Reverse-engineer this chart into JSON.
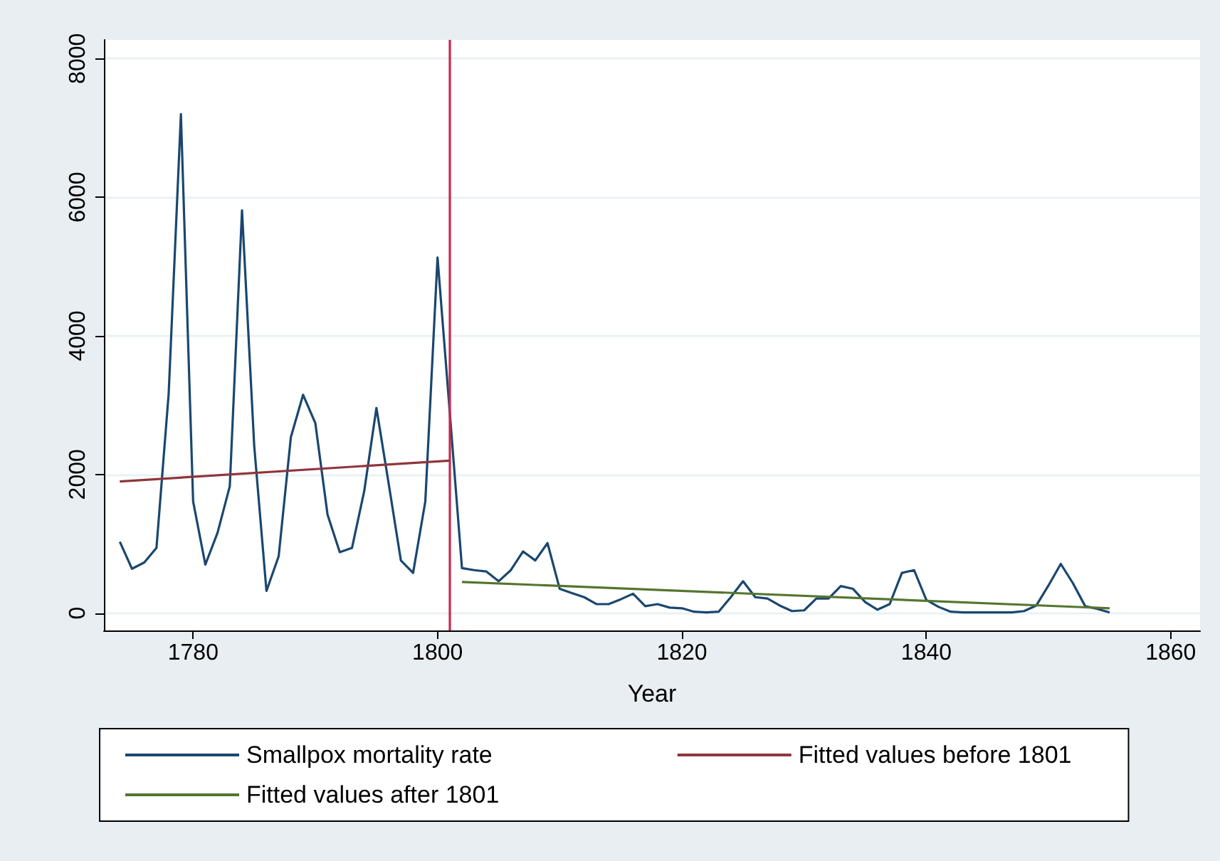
{
  "chart_data": {
    "type": "line",
    "xlabel": "Year",
    "xlim": [
      1772.7,
      1862.4
    ],
    "xticks": [
      1780,
      1800,
      1820,
      1840,
      1860
    ],
    "ylim": [
      -250,
      8270
    ],
    "yticks": [
      0,
      2000,
      4000,
      6000,
      8000
    ],
    "grid": "y",
    "legend": "bottom",
    "marker": "none",
    "line_style": "solid",
    "ref_lines": [
      {
        "axis": "x",
        "value": 1801,
        "color": "#c8284f"
      }
    ],
    "series": [
      {
        "name": "Smallpox mortality rate",
        "color": "#1a476f",
        "x": [
          1774,
          1775,
          1776,
          1777,
          1778,
          1779,
          1780,
          1781,
          1782,
          1783,
          1784,
          1785,
          1786,
          1787,
          1788,
          1789,
          1790,
          1791,
          1792,
          1793,
          1794,
          1795,
          1796,
          1797,
          1798,
          1799,
          1800,
          1801,
          1802,
          1803,
          1804,
          1805,
          1806,
          1807,
          1808,
          1809,
          1810,
          1811,
          1812,
          1813,
          1814,
          1815,
          1816,
          1817,
          1818,
          1819,
          1820,
          1821,
          1822,
          1823,
          1824,
          1825,
          1826,
          1827,
          1828,
          1829,
          1830,
          1831,
          1832,
          1833,
          1834,
          1835,
          1836,
          1837,
          1838,
          1839,
          1840,
          1841,
          1842,
          1843,
          1844,
          1845,
          1846,
          1847,
          1848,
          1849,
          1850,
          1851,
          1852,
          1853,
          1854,
          1855
        ],
        "values": [
          1030,
          640,
          730,
          940,
          3170,
          7200,
          1610,
          700,
          1160,
          1830,
          5810,
          2410,
          320,
          820,
          2540,
          3150,
          2740,
          1420,
          880,
          940,
          1760,
          2960,
          1870,
          760,
          580,
          1610,
          5130,
          2900,
          650,
          620,
          600,
          460,
          620,
          890,
          760,
          1010,
          350,
          290,
          230,
          130,
          130,
          200,
          280,
          100,
          130,
          80,
          70,
          20,
          10,
          20,
          230,
          460,
          230,
          210,
          110,
          30,
          40,
          210,
          210,
          390,
          350,
          160,
          50,
          130,
          580,
          620,
          190,
          90,
          20,
          10,
          10,
          10,
          10,
          10,
          30,
          110,
          400,
          710,
          430,
          100,
          60,
          10
        ]
      },
      {
        "name": "Fitted values before 1801",
        "color": "#90353b",
        "x": [
          1774,
          1801
        ],
        "values": [
          1900,
          2200
        ]
      },
      {
        "name": "Fitted values after 1801",
        "color": "#55752f",
        "x": [
          1802,
          1855
        ],
        "values": [
          450,
          70
        ]
      }
    ]
  }
}
